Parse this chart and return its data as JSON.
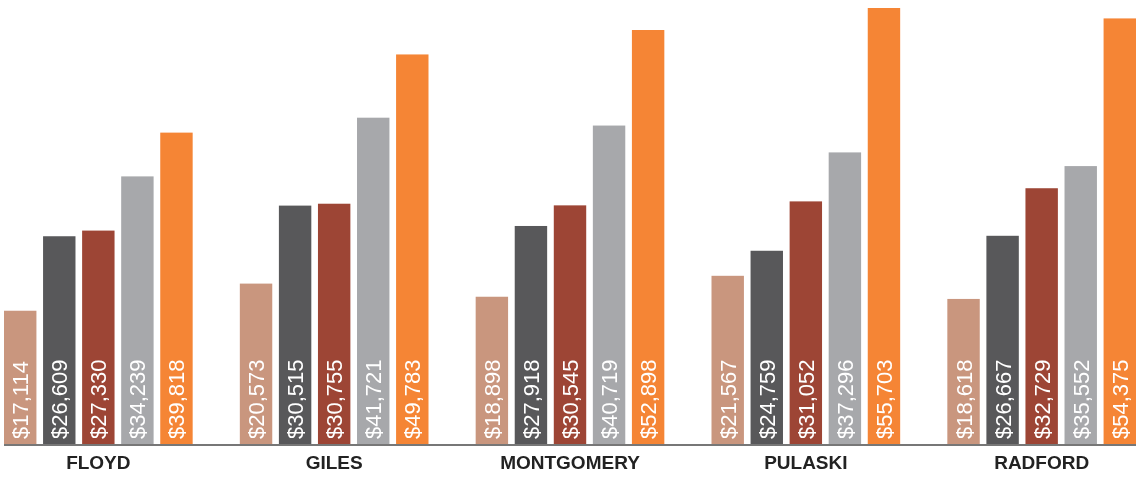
{
  "chart_data": {
    "type": "bar",
    "categories": [
      "FLOYD",
      "GILES",
      "MONTGOMERY",
      "PULASKI",
      "RADFORD"
    ],
    "series": [
      {
        "color": "#c9967e",
        "values": [
          17114,
          20573,
          18898,
          21567,
          18618
        ],
        "value_labels": [
          "$17,114",
          "$20,573",
          "$18,898",
          "$21,567",
          "$18,618"
        ]
      },
      {
        "color": "#58585a",
        "values": [
          26609,
          30515,
          27918,
          24759,
          26667
        ],
        "value_labels": [
          "$26,609",
          "$30,515",
          "$27,918",
          "$24,759",
          "$26,667"
        ]
      },
      {
        "color": "#9d4535",
        "values": [
          27330,
          30755,
          30545,
          31052,
          32729
        ],
        "value_labels": [
          "$27,330",
          "$30,755",
          "$30,545",
          "$31,052",
          "$32,729"
        ]
      },
      {
        "color": "#a7a8ab",
        "values": [
          34239,
          41721,
          40719,
          37296,
          35552
        ],
        "value_labels": [
          "$34,239",
          "$41,721",
          "$40,719",
          "$37,296",
          "$35,552"
        ]
      },
      {
        "color": "#f58535",
        "values": [
          39818,
          49783,
          52898,
          55703,
          54375
        ],
        "value_labels": [
          "$39,818",
          "$49,783",
          "$52,898",
          "$55,703",
          "$54,375"
        ]
      }
    ]
  }
}
